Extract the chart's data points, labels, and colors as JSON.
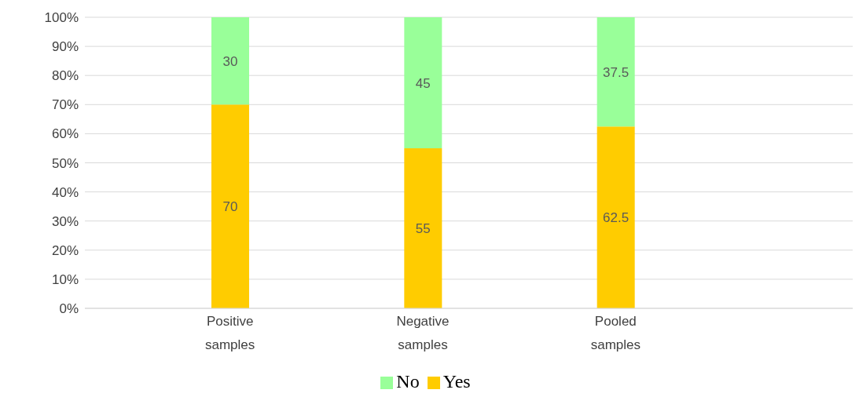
{
  "chart_data": {
    "type": "bar",
    "stacked": true,
    "categories": [
      "Positive samples",
      "Negative samples",
      "Pooled samples"
    ],
    "series": [
      {
        "name": "Yes",
        "color": "#ffcc00",
        "values": [
          70,
          55,
          62.5
        ]
      },
      {
        "name": "No",
        "color": "#99ff99",
        "values": [
          30,
          45,
          37.5
        ]
      }
    ],
    "ylim": [
      0,
      100
    ],
    "yticks": [
      {
        "value": 0,
        "label": "0%"
      },
      {
        "value": 10,
        "label": "10%"
      },
      {
        "value": 20,
        "label": "20%"
      },
      {
        "value": 30,
        "label": "30%"
      },
      {
        "value": 40,
        "label": "40%"
      },
      {
        "value": 50,
        "label": "50%"
      },
      {
        "value": 60,
        "label": "60%"
      },
      {
        "value": 70,
        "label": "70%"
      },
      {
        "value": 80,
        "label": "80%"
      },
      {
        "value": 90,
        "label": "90%"
      },
      {
        "value": 100,
        "label": "100%"
      }
    ],
    "grid": "y",
    "legend": "bottom",
    "data_labels": true
  }
}
